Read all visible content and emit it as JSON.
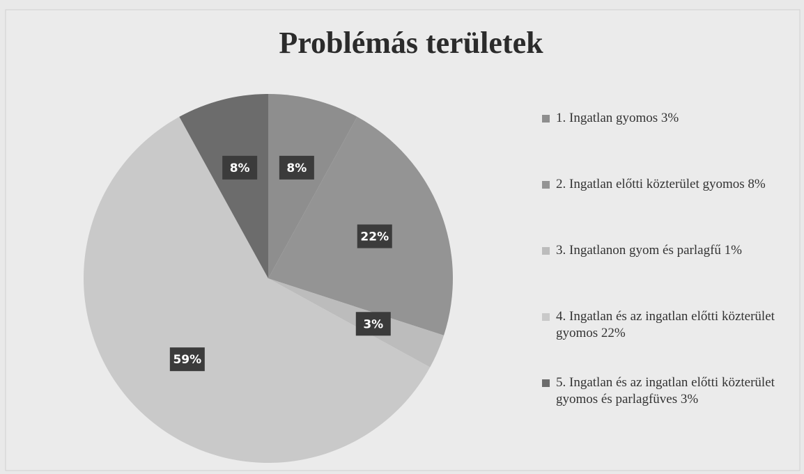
{
  "chart_data": {
    "type": "pie",
    "title": "Problémás területek",
    "categories": [
      "1. Ingatlan gyomos 3%",
      "2. Ingatlan előtti közterület gyomos 8%",
      "3. Ingatlanon gyom és parlagfű 1%",
      "4. Ingatlan és az ingatlan előtti közterület gyomos 22%",
      "5. Ingatlan és az ingatlan előtti közterület gyomos és parlagfüves 3%"
    ],
    "values": [
      8,
      22,
      3,
      59,
      8
    ],
    "value_labels": [
      "8%",
      "22%",
      "3%",
      "59%",
      "8%"
    ],
    "colors": [
      "#8e8e8e",
      "#949494",
      "#bcbcbc",
      "#c9c9c9",
      "#6c6c6c"
    ],
    "legend": "right"
  }
}
